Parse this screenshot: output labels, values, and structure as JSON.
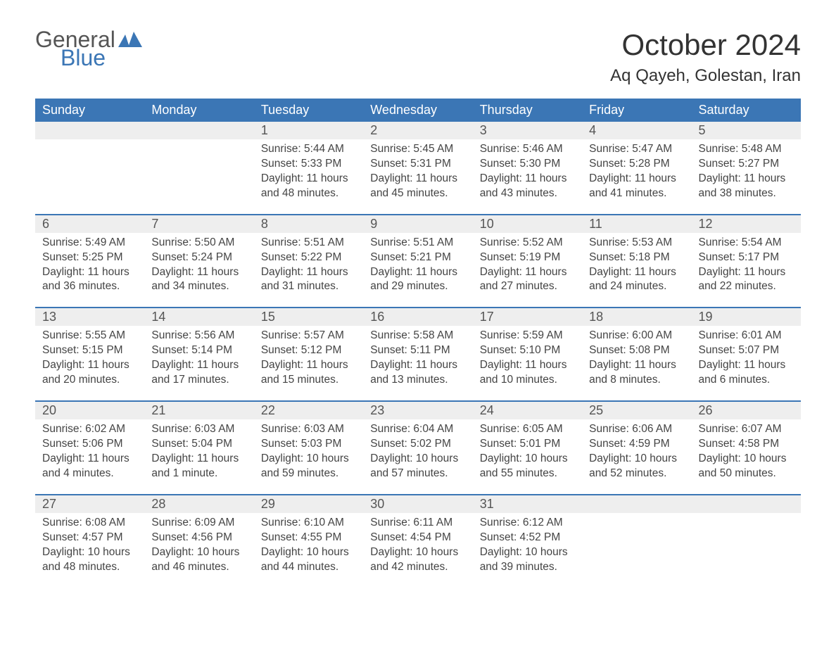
{
  "logo": {
    "text_general": "General",
    "text_blue": "Blue",
    "icon_color": "#3b76b5"
  },
  "title": "October 2024",
  "location": "Aq Qayeh, Golestan, Iran",
  "colors": {
    "header_bg": "#3b76b5",
    "header_text": "#ffffff",
    "daynum_bg": "#eeeeee",
    "body_text": "#444444",
    "rule": "#3b76b5"
  },
  "weekdays": [
    "Sunday",
    "Monday",
    "Tuesday",
    "Wednesday",
    "Thursday",
    "Friday",
    "Saturday"
  ],
  "weeks": [
    [
      null,
      null,
      {
        "n": "1",
        "sunrise": "5:44 AM",
        "sunset": "5:33 PM",
        "daylight": "11 hours and 48 minutes."
      },
      {
        "n": "2",
        "sunrise": "5:45 AM",
        "sunset": "5:31 PM",
        "daylight": "11 hours and 45 minutes."
      },
      {
        "n": "3",
        "sunrise": "5:46 AM",
        "sunset": "5:30 PM",
        "daylight": "11 hours and 43 minutes."
      },
      {
        "n": "4",
        "sunrise": "5:47 AM",
        "sunset": "5:28 PM",
        "daylight": "11 hours and 41 minutes."
      },
      {
        "n": "5",
        "sunrise": "5:48 AM",
        "sunset": "5:27 PM",
        "daylight": "11 hours and 38 minutes."
      }
    ],
    [
      {
        "n": "6",
        "sunrise": "5:49 AM",
        "sunset": "5:25 PM",
        "daylight": "11 hours and 36 minutes."
      },
      {
        "n": "7",
        "sunrise": "5:50 AM",
        "sunset": "5:24 PM",
        "daylight": "11 hours and 34 minutes."
      },
      {
        "n": "8",
        "sunrise": "5:51 AM",
        "sunset": "5:22 PM",
        "daylight": "11 hours and 31 minutes."
      },
      {
        "n": "9",
        "sunrise": "5:51 AM",
        "sunset": "5:21 PM",
        "daylight": "11 hours and 29 minutes."
      },
      {
        "n": "10",
        "sunrise": "5:52 AM",
        "sunset": "5:19 PM",
        "daylight": "11 hours and 27 minutes."
      },
      {
        "n": "11",
        "sunrise": "5:53 AM",
        "sunset": "5:18 PM",
        "daylight": "11 hours and 24 minutes."
      },
      {
        "n": "12",
        "sunrise": "5:54 AM",
        "sunset": "5:17 PM",
        "daylight": "11 hours and 22 minutes."
      }
    ],
    [
      {
        "n": "13",
        "sunrise": "5:55 AM",
        "sunset": "5:15 PM",
        "daylight": "11 hours and 20 minutes."
      },
      {
        "n": "14",
        "sunrise": "5:56 AM",
        "sunset": "5:14 PM",
        "daylight": "11 hours and 17 minutes."
      },
      {
        "n": "15",
        "sunrise": "5:57 AM",
        "sunset": "5:12 PM",
        "daylight": "11 hours and 15 minutes."
      },
      {
        "n": "16",
        "sunrise": "5:58 AM",
        "sunset": "5:11 PM",
        "daylight": "11 hours and 13 minutes."
      },
      {
        "n": "17",
        "sunrise": "5:59 AM",
        "sunset": "5:10 PM",
        "daylight": "11 hours and 10 minutes."
      },
      {
        "n": "18",
        "sunrise": "6:00 AM",
        "sunset": "5:08 PM",
        "daylight": "11 hours and 8 minutes."
      },
      {
        "n": "19",
        "sunrise": "6:01 AM",
        "sunset": "5:07 PM",
        "daylight": "11 hours and 6 minutes."
      }
    ],
    [
      {
        "n": "20",
        "sunrise": "6:02 AM",
        "sunset": "5:06 PM",
        "daylight": "11 hours and 4 minutes."
      },
      {
        "n": "21",
        "sunrise": "6:03 AM",
        "sunset": "5:04 PM",
        "daylight": "11 hours and 1 minute."
      },
      {
        "n": "22",
        "sunrise": "6:03 AM",
        "sunset": "5:03 PM",
        "daylight": "10 hours and 59 minutes."
      },
      {
        "n": "23",
        "sunrise": "6:04 AM",
        "sunset": "5:02 PM",
        "daylight": "10 hours and 57 minutes."
      },
      {
        "n": "24",
        "sunrise": "6:05 AM",
        "sunset": "5:01 PM",
        "daylight": "10 hours and 55 minutes."
      },
      {
        "n": "25",
        "sunrise": "6:06 AM",
        "sunset": "4:59 PM",
        "daylight": "10 hours and 52 minutes."
      },
      {
        "n": "26",
        "sunrise": "6:07 AM",
        "sunset": "4:58 PM",
        "daylight": "10 hours and 50 minutes."
      }
    ],
    [
      {
        "n": "27",
        "sunrise": "6:08 AM",
        "sunset": "4:57 PM",
        "daylight": "10 hours and 48 minutes."
      },
      {
        "n": "28",
        "sunrise": "6:09 AM",
        "sunset": "4:56 PM",
        "daylight": "10 hours and 46 minutes."
      },
      {
        "n": "29",
        "sunrise": "6:10 AM",
        "sunset": "4:55 PM",
        "daylight": "10 hours and 44 minutes."
      },
      {
        "n": "30",
        "sunrise": "6:11 AM",
        "sunset": "4:54 PM",
        "daylight": "10 hours and 42 minutes."
      },
      {
        "n": "31",
        "sunrise": "6:12 AM",
        "sunset": "4:52 PM",
        "daylight": "10 hours and 39 minutes."
      },
      null,
      null
    ]
  ],
  "labels": {
    "sunrise": "Sunrise:",
    "sunset": "Sunset:",
    "daylight": "Daylight:"
  }
}
